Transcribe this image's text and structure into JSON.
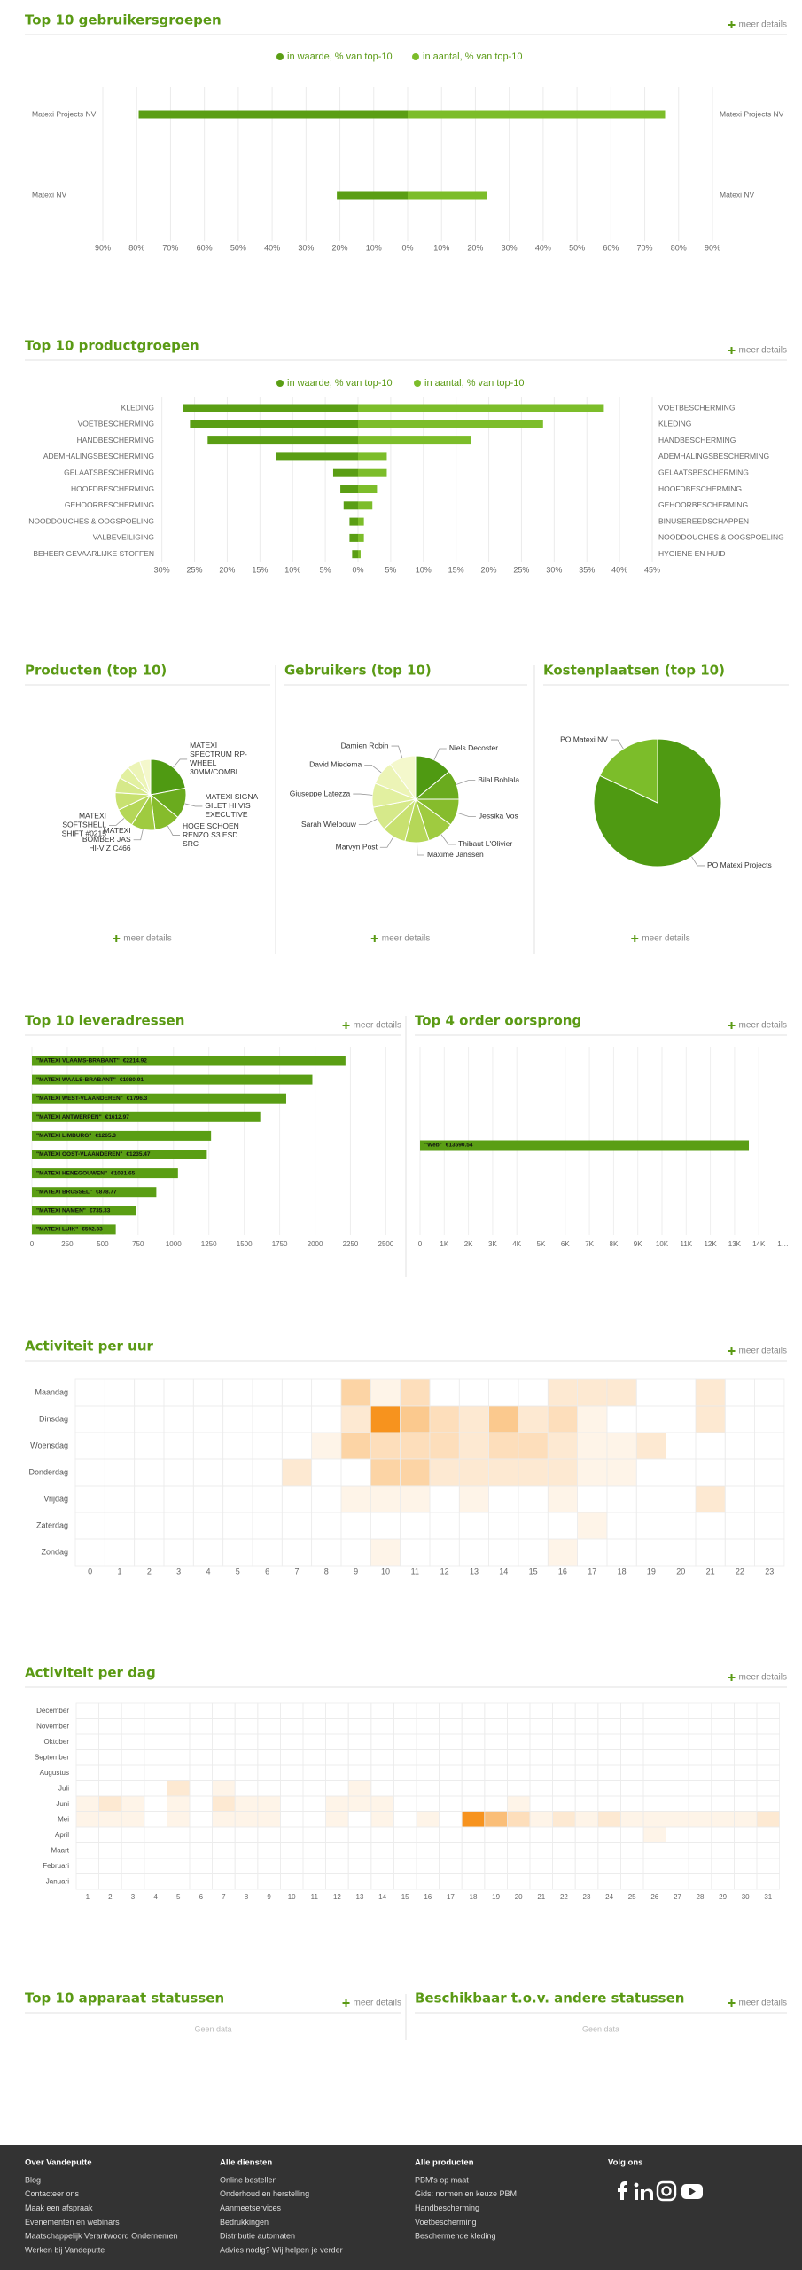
{
  "chart_data": [
    {
      "type": "butterfly",
      "title": "Top 10 gebruikersgroepen",
      "link": "meer details",
      "series": [
        {
          "name": "in waarde, % van top-10",
          "color": "#5a9e14",
          "side": "left",
          "categories": [
            "Matexi Projects NV",
            "Matexi NV"
          ],
          "values": [
            79.4,
            20.9
          ]
        },
        {
          "name": "in aantal, % van top-10",
          "color": "#7cbd2a",
          "side": "right",
          "categories": [
            "Matexi Projects NV",
            "Matexi NV"
          ],
          "values": [
            76,
            23.5
          ]
        }
      ],
      "xlim": [
        0,
        90
      ],
      "xticks_left": [
        {
          "value": 90,
          "label": "90%"
        },
        {
          "value": 80,
          "label": "80%"
        },
        {
          "value": 70,
          "label": "70%"
        },
        {
          "value": 60,
          "label": "60%"
        },
        {
          "value": 50,
          "label": "50%"
        },
        {
          "value": 40,
          "label": "40%"
        },
        {
          "value": 30,
          "label": "30%"
        },
        {
          "value": 20,
          "label": "20%"
        },
        {
          "value": 10,
          "label": "10%"
        }
      ],
      "xticks_right": [
        {
          "value": 0,
          "label": "0%"
        },
        {
          "value": 10,
          "label": "10%"
        },
        {
          "value": 20,
          "label": "20%"
        },
        {
          "value": 30,
          "label": "30%"
        },
        {
          "value": 40,
          "label": "40%"
        },
        {
          "value": 50,
          "label": "50%"
        },
        {
          "value": 60,
          "label": "60%"
        },
        {
          "value": 70,
          "label": "70%"
        },
        {
          "value": 80,
          "label": "80%"
        },
        {
          "value": 90,
          "label": "90%"
        }
      ],
      "grid": true
    },
    {
      "type": "butterfly",
      "title": "Top 10 productgroepen",
      "link": "meer details",
      "series": [
        {
          "name": "in waarde, % van top-10",
          "color": "#5a9e14",
          "side": "left",
          "categories": [
            "KLEDING",
            "VOETBESCHERMING",
            "HANDBESCHERMING",
            "ADEMHALINGSBESCHERMING",
            "GELAATSBESCHERMING",
            "HOOFDBESCHERMING",
            "GEHOORBESCHERMING",
            "NOODDOUCHES & OOGSPOELING",
            "VALBEVEILIGING",
            "BEHEER GEVAARLIJKE STOFFEN"
          ],
          "values": [
            26.8,
            25.7,
            23,
            12.6,
            3.8,
            2.7,
            2.2,
            1.3,
            1.3,
            0.9
          ]
        },
        {
          "name": "in aantal, % van top-10",
          "color": "#7cbd2a",
          "side": "right",
          "categories": [
            "VOETBESCHERMING",
            "KLEDING",
            "HANDBESCHERMING",
            "ADEMHALINGSBESCHERMING",
            "GELAATSBESCHERMING",
            "HOOFDBESCHERMING",
            "GEHOORBESCHERMING",
            "BINUSEREEDSCHAPPEN",
            "NOODDOUCHES & OOGSPOELING",
            "HYGIENE EN HUID"
          ],
          "values": [
            37.6,
            28.3,
            17.3,
            4.4,
            4.4,
            2.9,
            2.2,
            0.9,
            0.9,
            0.4
          ]
        }
      ],
      "xlim": [
        0,
        45
      ],
      "xticks_left": [
        {
          "value": 30,
          "label": "30%"
        },
        {
          "value": 25,
          "label": "25%"
        },
        {
          "value": 20,
          "label": "20%"
        },
        {
          "value": 15,
          "label": "15%"
        },
        {
          "value": 10,
          "label": "10%"
        },
        {
          "value": 5,
          "label": "5%"
        }
      ],
      "xticks_right": [
        {
          "value": 0,
          "label": "0%"
        },
        {
          "value": 5,
          "label": "5%"
        },
        {
          "value": 10,
          "label": "10%"
        },
        {
          "value": 15,
          "label": "15%"
        },
        {
          "value": 20,
          "label": "20%"
        },
        {
          "value": 25,
          "label": "25%"
        },
        {
          "value": 30,
          "label": "30%"
        },
        {
          "value": 35,
          "label": "35%"
        },
        {
          "value": 40,
          "label": "40%"
        },
        {
          "value": 45,
          "label": "45%"
        }
      ],
      "grid": true
    },
    {
      "type": "pie",
      "title": "Producten (top 10)",
      "link": "meer details",
      "values": [
        22,
        14,
        12,
        11,
        9,
        8,
        7,
        6,
        6,
        5
      ],
      "labels": [
        [
          "MATEXI",
          "SPECTRUM RP-",
          "WHEEL",
          "30MM/COMBI"
        ],
        [
          "MATEXI SIGNA",
          "GILET HI VIS",
          "EXECUTIVE"
        ],
        [
          "HOGE SCHOEN",
          "RENZO S3 ESD",
          "SRC"
        ],
        [
          "MATEXI",
          "BOMBER JAS",
          "HI-VIZ C466"
        ],
        [
          "MATEXI",
          "SOFTSHELL",
          "SHIFT #0215"
        ],
        null,
        null,
        null,
        null,
        null
      ],
      "colors": [
        "#4f9a12",
        "#6aab1e",
        "#86bc2c",
        "#9fcb40",
        "#b5d758",
        "#c8e170",
        "#d6e98a",
        "#e2f0a0",
        "#ecf4b6",
        "#f4f8cc"
      ]
    },
    {
      "type": "pie",
      "title": "Gebruikers (top 10)",
      "values": [
        14,
        11,
        10,
        10,
        9,
        9,
        9,
        9,
        9,
        10
      ],
      "labels": [
        "Niels Decoster",
        "Bilal Bohlala",
        "Jessika Vos",
        "Thibaut L'Olivier",
        "Maxime Janssen",
        "Marvyn Post",
        "Sarah Wielbouw",
        "Giuseppe Latezza",
        "David Miedema",
        "Damien Robin"
      ],
      "colors": [
        "#4f9a12",
        "#6aab1e",
        "#86bc2c",
        "#9fcb40",
        "#b5d758",
        "#c8e170",
        "#d6e98a",
        "#e2f0a0",
        "#ecf4b6",
        "#f4f8cc"
      ],
      "link": "meer details"
    },
    {
      "type": "pie",
      "title": "Kostenplaatsen (top 10)",
      "link": "meer details",
      "values": [
        82,
        18
      ],
      "labels": [
        "PO Matexi Projects",
        "PO Matexi NV"
      ],
      "colors": [
        "#4f9a12",
        "#7cbd2a"
      ]
    },
    {
      "type": "hbar",
      "title": "Top 10 leveradressen",
      "link": "meer details",
      "categories": [
        "\"MATEXI VLAAMS-BRABANT\"",
        "\"MATEXI WAALS-BRABANT\"",
        "\"MATEXI WEST-VLAANDEREN\"",
        "\"MATEXI ANTWERPEN\"",
        "\"MATEXI LIMBURG\"",
        "\"MATEXI OOST-VLAANDEREN\"",
        "\"MATEXI HENEGOUWEN\"",
        "\"MATEXI BRUSSEL\"",
        "\"MATEXI NAMEN\"",
        "\"MATEXI LUIK\""
      ],
      "values": [
        2214.92,
        1980.91,
        1796.3,
        1612.97,
        1265.3,
        1235.47,
        1031.65,
        878.77,
        735.33,
        592.33
      ],
      "value_labels": [
        "€2214.92",
        "€1980.91",
        "€1796.3",
        "€1612.97",
        "€1265.3",
        "€1235.47",
        "€1031.65",
        "€878.77",
        "€735.33",
        "€592.33"
      ],
      "color": "#5a9e14",
      "xlim": [
        0,
        2560
      ],
      "xticks": [
        0,
        250,
        500,
        750,
        1000,
        1250,
        1500,
        1750,
        2000,
        2250,
        2500
      ],
      "grid": true
    },
    {
      "type": "hbar",
      "title": "Top 4 order oorsprong",
      "link": "meer details",
      "categories": [
        "\"Web\""
      ],
      "values": [
        13590.54
      ],
      "value_labels": [
        "€13590.54"
      ],
      "color": "#5a9e14",
      "xlim": [
        0,
        15000
      ],
      "xticks": [
        0,
        {
          "value": 1000,
          "label": "1K"
        },
        {
          "value": 2000,
          "label": "2K"
        },
        {
          "value": 3000,
          "label": "3K"
        },
        {
          "value": 4000,
          "label": "4K"
        },
        {
          "value": 5000,
          "label": "5K"
        },
        {
          "value": 6000,
          "label": "6K"
        },
        {
          "value": 7000,
          "label": "7K"
        },
        {
          "value": 8000,
          "label": "8K"
        },
        {
          "value": 9000,
          "label": "9K"
        },
        {
          "value": 10000,
          "label": "10K"
        },
        {
          "value": 11000,
          "label": "11K"
        },
        {
          "value": 12000,
          "label": "12K"
        },
        {
          "value": 13000,
          "label": "13K"
        },
        {
          "value": 14000,
          "label": "14K"
        },
        {
          "value": 15000,
          "label": "1…"
        }
      ],
      "grid": true
    },
    {
      "type": "heatmap",
      "title": "Activiteit per uur",
      "link": "meer details",
      "color": "#f7931e",
      "rows": [
        "Maandag",
        "Dinsdag",
        "Woensdag",
        "Donderdag",
        "Vrijdag",
        "Zaterdag",
        "Zondag"
      ],
      "columns": [
        0,
        1,
        2,
        3,
        4,
        5,
        6,
        7,
        8,
        9,
        10,
        11,
        12,
        13,
        14,
        15,
        16,
        17,
        18,
        19,
        20,
        21,
        22,
        23
      ],
      "values": [
        [
          0,
          0,
          0,
          0,
          0,
          0,
          0,
          0,
          0,
          4,
          1,
          3,
          0,
          0,
          0,
          0,
          2,
          2,
          2,
          0,
          0,
          2,
          0,
          0
        ],
        [
          0,
          0,
          0,
          0,
          0,
          0,
          0,
          0,
          0,
          2,
          10,
          5,
          3,
          2,
          5,
          2,
          3,
          1,
          0,
          0,
          0,
          2,
          0,
          0
        ],
        [
          0,
          0,
          0,
          0,
          0,
          0,
          0,
          0,
          1,
          4,
          3,
          3,
          3,
          2,
          3,
          3,
          2,
          1,
          1,
          2,
          0,
          0,
          0,
          0
        ],
        [
          0,
          0,
          0,
          0,
          0,
          0,
          0,
          2,
          0,
          0,
          4,
          4,
          2,
          2,
          2,
          2,
          2,
          1,
          1,
          0,
          0,
          0,
          0,
          0
        ],
        [
          0,
          0,
          0,
          0,
          0,
          0,
          0,
          0,
          0,
          1,
          1,
          1,
          0,
          1,
          0,
          0,
          1,
          0,
          0,
          0,
          0,
          2,
          0,
          0
        ],
        [
          0,
          0,
          0,
          0,
          0,
          0,
          0,
          0,
          0,
          0,
          0,
          0,
          0,
          0,
          0,
          0,
          0,
          1,
          0,
          0,
          0,
          0,
          0,
          0
        ],
        [
          0,
          0,
          0,
          0,
          0,
          0,
          0,
          0,
          0,
          0,
          1,
          0,
          0,
          0,
          0,
          0,
          1,
          0,
          0,
          0,
          0,
          0,
          0,
          0
        ]
      ]
    },
    {
      "type": "heatmap",
      "title": "Activiteit per dag",
      "link": "meer details",
      "color": "#f7931e",
      "rows": [
        "December",
        "November",
        "Oktober",
        "September",
        "Augustus",
        "Juli",
        "Juni",
        "Mei",
        "April",
        "Maart",
        "Februari",
        "Januari"
      ],
      "columns": [
        1,
        2,
        3,
        4,
        5,
        6,
        7,
        8,
        9,
        10,
        11,
        12,
        13,
        14,
        15,
        16,
        17,
        18,
        19,
        20,
        21,
        22,
        23,
        24,
        25,
        26,
        27,
        28,
        29,
        30,
        31
      ],
      "values": [
        [
          0,
          0,
          0,
          0,
          0,
          0,
          0,
          0,
          0,
          0,
          0,
          0,
          0,
          0,
          0,
          0,
          0,
          0,
          0,
          0,
          0,
          0,
          0,
          0,
          0,
          0,
          0,
          0,
          0,
          0,
          0
        ],
        [
          0,
          0,
          0,
          0,
          0,
          0,
          0,
          0,
          0,
          0,
          0,
          0,
          0,
          0,
          0,
          0,
          0,
          0,
          0,
          0,
          0,
          0,
          0,
          0,
          0,
          0,
          0,
          0,
          0,
          0,
          0
        ],
        [
          0,
          0,
          0,
          0,
          0,
          0,
          0,
          0,
          0,
          0,
          0,
          0,
          0,
          0,
          0,
          0,
          0,
          0,
          0,
          0,
          0,
          0,
          0,
          0,
          0,
          0,
          0,
          0,
          0,
          0,
          0
        ],
        [
          0,
          0,
          0,
          0,
          0,
          0,
          0,
          0,
          0,
          0,
          0,
          0,
          0,
          0,
          0,
          0,
          0,
          0,
          0,
          0,
          0,
          0,
          0,
          0,
          0,
          0,
          0,
          0,
          0,
          0,
          0
        ],
        [
          0,
          0,
          0,
          0,
          0,
          0,
          0,
          0,
          0,
          0,
          0,
          0,
          0,
          0,
          0,
          0,
          0,
          0,
          0,
          0,
          0,
          0,
          0,
          0,
          0,
          0,
          0,
          0,
          0,
          0,
          0
        ],
        [
          0,
          0,
          0,
          0,
          2,
          0,
          1,
          0,
          0,
          0,
          0,
          0,
          1,
          0,
          0,
          0,
          0,
          0,
          0,
          0,
          0,
          0,
          0,
          0,
          0,
          0,
          0,
          0,
          0,
          0,
          0
        ],
        [
          1,
          2,
          1,
          0,
          1,
          0,
          2,
          1,
          1,
          0,
          0,
          1,
          1,
          1,
          0,
          0,
          0,
          0,
          0,
          1,
          0,
          0,
          0,
          0,
          0,
          0,
          0,
          0,
          0,
          0,
          0
        ],
        [
          1,
          1,
          1,
          0,
          1,
          0,
          1,
          1,
          1,
          0,
          0,
          1,
          0,
          1,
          0,
          1,
          0,
          10,
          6,
          3,
          1,
          2,
          1,
          2,
          1,
          1,
          1,
          1,
          1,
          1,
          2
        ],
        [
          0,
          0,
          0,
          0,
          0,
          0,
          0,
          0,
          0,
          0,
          0,
          0,
          0,
          0,
          0,
          0,
          0,
          0,
          0,
          0,
          0,
          0,
          0,
          0,
          0,
          1,
          0,
          0,
          0,
          0,
          0
        ],
        [
          0,
          0,
          0,
          0,
          0,
          0,
          0,
          0,
          0,
          0,
          0,
          0,
          0,
          0,
          0,
          0,
          0,
          0,
          0,
          0,
          0,
          0,
          0,
          0,
          0,
          0,
          0,
          0,
          0,
          0,
          0
        ],
        [
          0,
          0,
          0,
          0,
          0,
          0,
          0,
          0,
          0,
          0,
          0,
          0,
          0,
          0,
          0,
          0,
          0,
          0,
          0,
          0,
          0,
          0,
          0,
          0,
          0,
          0,
          0,
          0,
          0,
          0,
          0
        ],
        [
          0,
          0,
          0,
          0,
          0,
          0,
          0,
          0,
          0,
          0,
          0,
          0,
          0,
          0,
          0,
          0,
          0,
          0,
          0,
          0,
          0,
          0,
          0,
          0,
          0,
          0,
          0,
          0,
          0,
          0,
          0
        ]
      ]
    },
    {
      "type": "empty",
      "title": "Top 10 apparaat statussen",
      "link": "meer details",
      "message": "Geen data"
    },
    {
      "type": "empty",
      "title": "Beschikbaar t.o.v. andere statussen",
      "link": "meer details",
      "message": "Geen data"
    }
  ],
  "footer": {
    "columns": [
      {
        "heading": "Over Vandeputte",
        "items": [
          "Blog",
          "Contacteer ons",
          "Maak een afspraak",
          "Evenementen en webinars",
          "Maatschappelijk Verantwoord Ondernemen",
          "Werken bij Vandeputte"
        ]
      },
      {
        "heading": "Alle diensten",
        "items": [
          "Online bestellen",
          "Onderhoud en herstelling",
          "Aanmeetservices",
          "Bedrukkingen",
          "Distributie automaten",
          "Advies nodig? Wij helpen je verder"
        ]
      },
      {
        "heading": "Alle producten",
        "items": [
          "PBM's op maat",
          "Gids: normen en keuze PBM",
          "Handbescherming",
          "Voetbescherming",
          "Beschermende kleding"
        ]
      },
      {
        "heading": "Volg ons",
        "items": []
      }
    ]
  }
}
